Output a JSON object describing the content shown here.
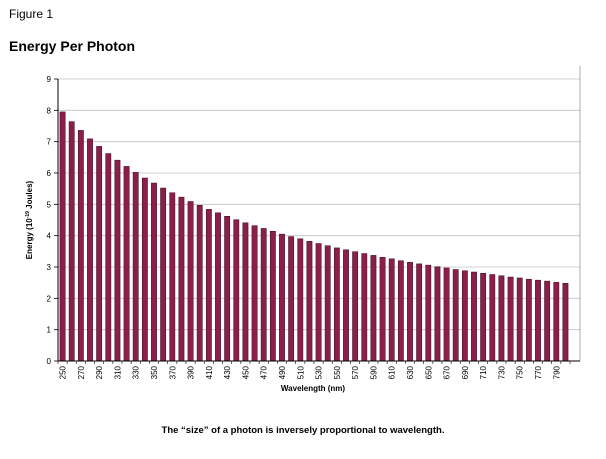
{
  "figure_label": "Figure 1",
  "caption": "The “size” of a photon is inversely proportional to wavelength.",
  "colors": {
    "bar_fill": "#8B1E4A",
    "bar_stroke": "#3a0a1c",
    "grid": "#c0c0c0"
  },
  "chart_data": {
    "type": "bar",
    "title": "Energy Per Photon",
    "xlabel": "Wavelength (nm)",
    "ylabel_main": "Energy (10",
    "ylabel_sup": "-19",
    "ylabel_end": " Joules)",
    "ylim": [
      0,
      9
    ],
    "yticks": [
      "0",
      "1",
      "2",
      "3",
      "4",
      "5",
      "6",
      "7",
      "8",
      "9"
    ],
    "grid": true,
    "categories": [
      250,
      260,
      270,
      280,
      290,
      300,
      310,
      320,
      330,
      340,
      350,
      360,
      370,
      380,
      390,
      400,
      410,
      420,
      430,
      440,
      450,
      460,
      470,
      480,
      490,
      500,
      510,
      520,
      530,
      540,
      550,
      560,
      570,
      580,
      590,
      600,
      610,
      620,
      630,
      640,
      650,
      660,
      670,
      680,
      690,
      700,
      710,
      720,
      730,
      740,
      750,
      760,
      770,
      780,
      790,
      800
    ],
    "tick_labels": [
      "250",
      "270",
      "290",
      "310",
      "330",
      "350",
      "370",
      "390",
      "410",
      "430",
      "450",
      "470",
      "490",
      "510",
      "530",
      "550",
      "570",
      "590",
      "610",
      "630",
      "650",
      "670",
      "690",
      "710",
      "730",
      "750",
      "770",
      "790"
    ],
    "values": [
      7.95,
      7.64,
      7.36,
      7.09,
      6.85,
      6.62,
      6.41,
      6.21,
      6.02,
      5.84,
      5.68,
      5.52,
      5.37,
      5.23,
      5.09,
      4.97,
      4.84,
      4.73,
      4.62,
      4.51,
      4.41,
      4.32,
      4.23,
      4.14,
      4.05,
      3.97,
      3.9,
      3.82,
      3.75,
      3.68,
      3.61,
      3.55,
      3.49,
      3.43,
      3.37,
      3.31,
      3.26,
      3.2,
      3.15,
      3.1,
      3.06,
      3.01,
      2.97,
      2.92,
      2.88,
      2.84,
      2.8,
      2.76,
      2.72,
      2.68,
      2.65,
      2.61,
      2.58,
      2.55,
      2.51,
      2.48
    ]
  }
}
